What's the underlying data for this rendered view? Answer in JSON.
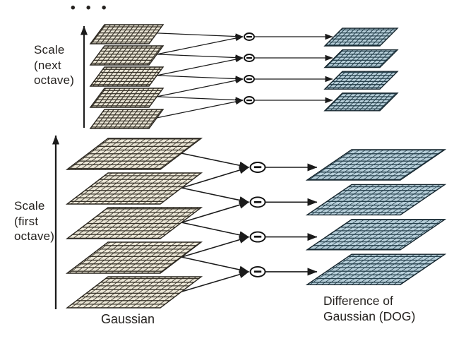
{
  "diagram": {
    "title_hint": "Scale-space pyramid: Gaussian images subtracted pairwise to form Difference of Gaussian (DOG) images",
    "ellipsis": "• • •",
    "octaves": [
      {
        "name": "first octave",
        "axis_label_lines": [
          "Scale",
          "(first",
          "octave)"
        ],
        "gaussian_levels": 5,
        "dog_levels": 4
      },
      {
        "name": "next octave",
        "axis_label_lines": [
          "Scale",
          "(next",
          "octave)"
        ],
        "gaussian_levels": 5,
        "dog_levels": 4
      }
    ],
    "operator": "−",
    "labels": {
      "gaussian": "Gaussian",
      "dog_line1": "Difference of",
      "dog_line2": "Gaussian (DOG)"
    },
    "colors": {
      "background": "#ffffff",
      "gaussian_fill": "#ebe6d6",
      "gaussian_grid": "#3a352b",
      "gaussian_outline": "#27231c",
      "dog_fill": "#b7cfda",
      "dog_grid": "#27424e",
      "dog_outline": "#16262e",
      "line": "#1b1b1b",
      "node_fill": "#ffffff",
      "node_stroke": "#111111",
      "text": "#262320"
    }
  }
}
